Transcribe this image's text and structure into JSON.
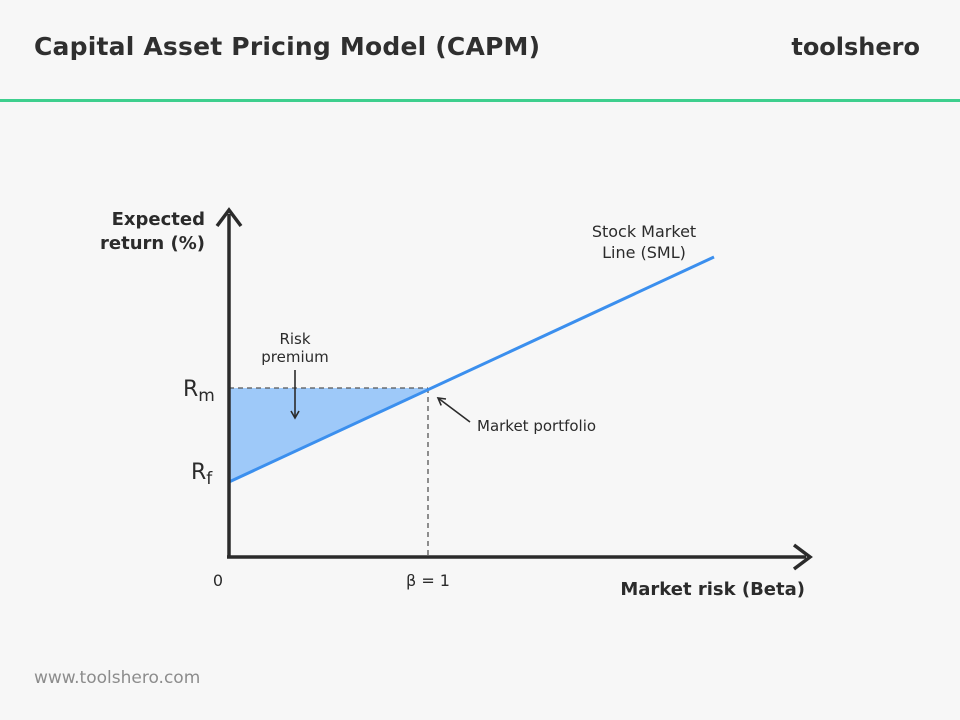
{
  "header": {
    "title": "Capital Asset Pricing Model (CAPM)",
    "brand": "toolshero"
  },
  "footer": {
    "url": "www.toolshero.com"
  },
  "colors": {
    "accent_rule": "#3ecf8e",
    "sml_line": "#3b8fee",
    "risk_premium_fill": "#9ec9f9",
    "axis": "#2b2b2b"
  },
  "diagram": {
    "y_axis_label_line1": "Expected",
    "y_axis_label_line2": "return (%)",
    "x_axis_label": "Market risk (Beta)",
    "origin_label": "0",
    "beta_one_label": "β = 1",
    "rm_label_main": "R",
    "rm_label_sub": "m",
    "rf_label_main": "R",
    "rf_label_sub": "f",
    "sml_label_line1": "Stock Market",
    "sml_label_line2": "Line (SML)",
    "risk_premium_line1": "Risk",
    "risk_premium_line2": "premium",
    "market_portfolio_label": "Market portfolio"
  }
}
